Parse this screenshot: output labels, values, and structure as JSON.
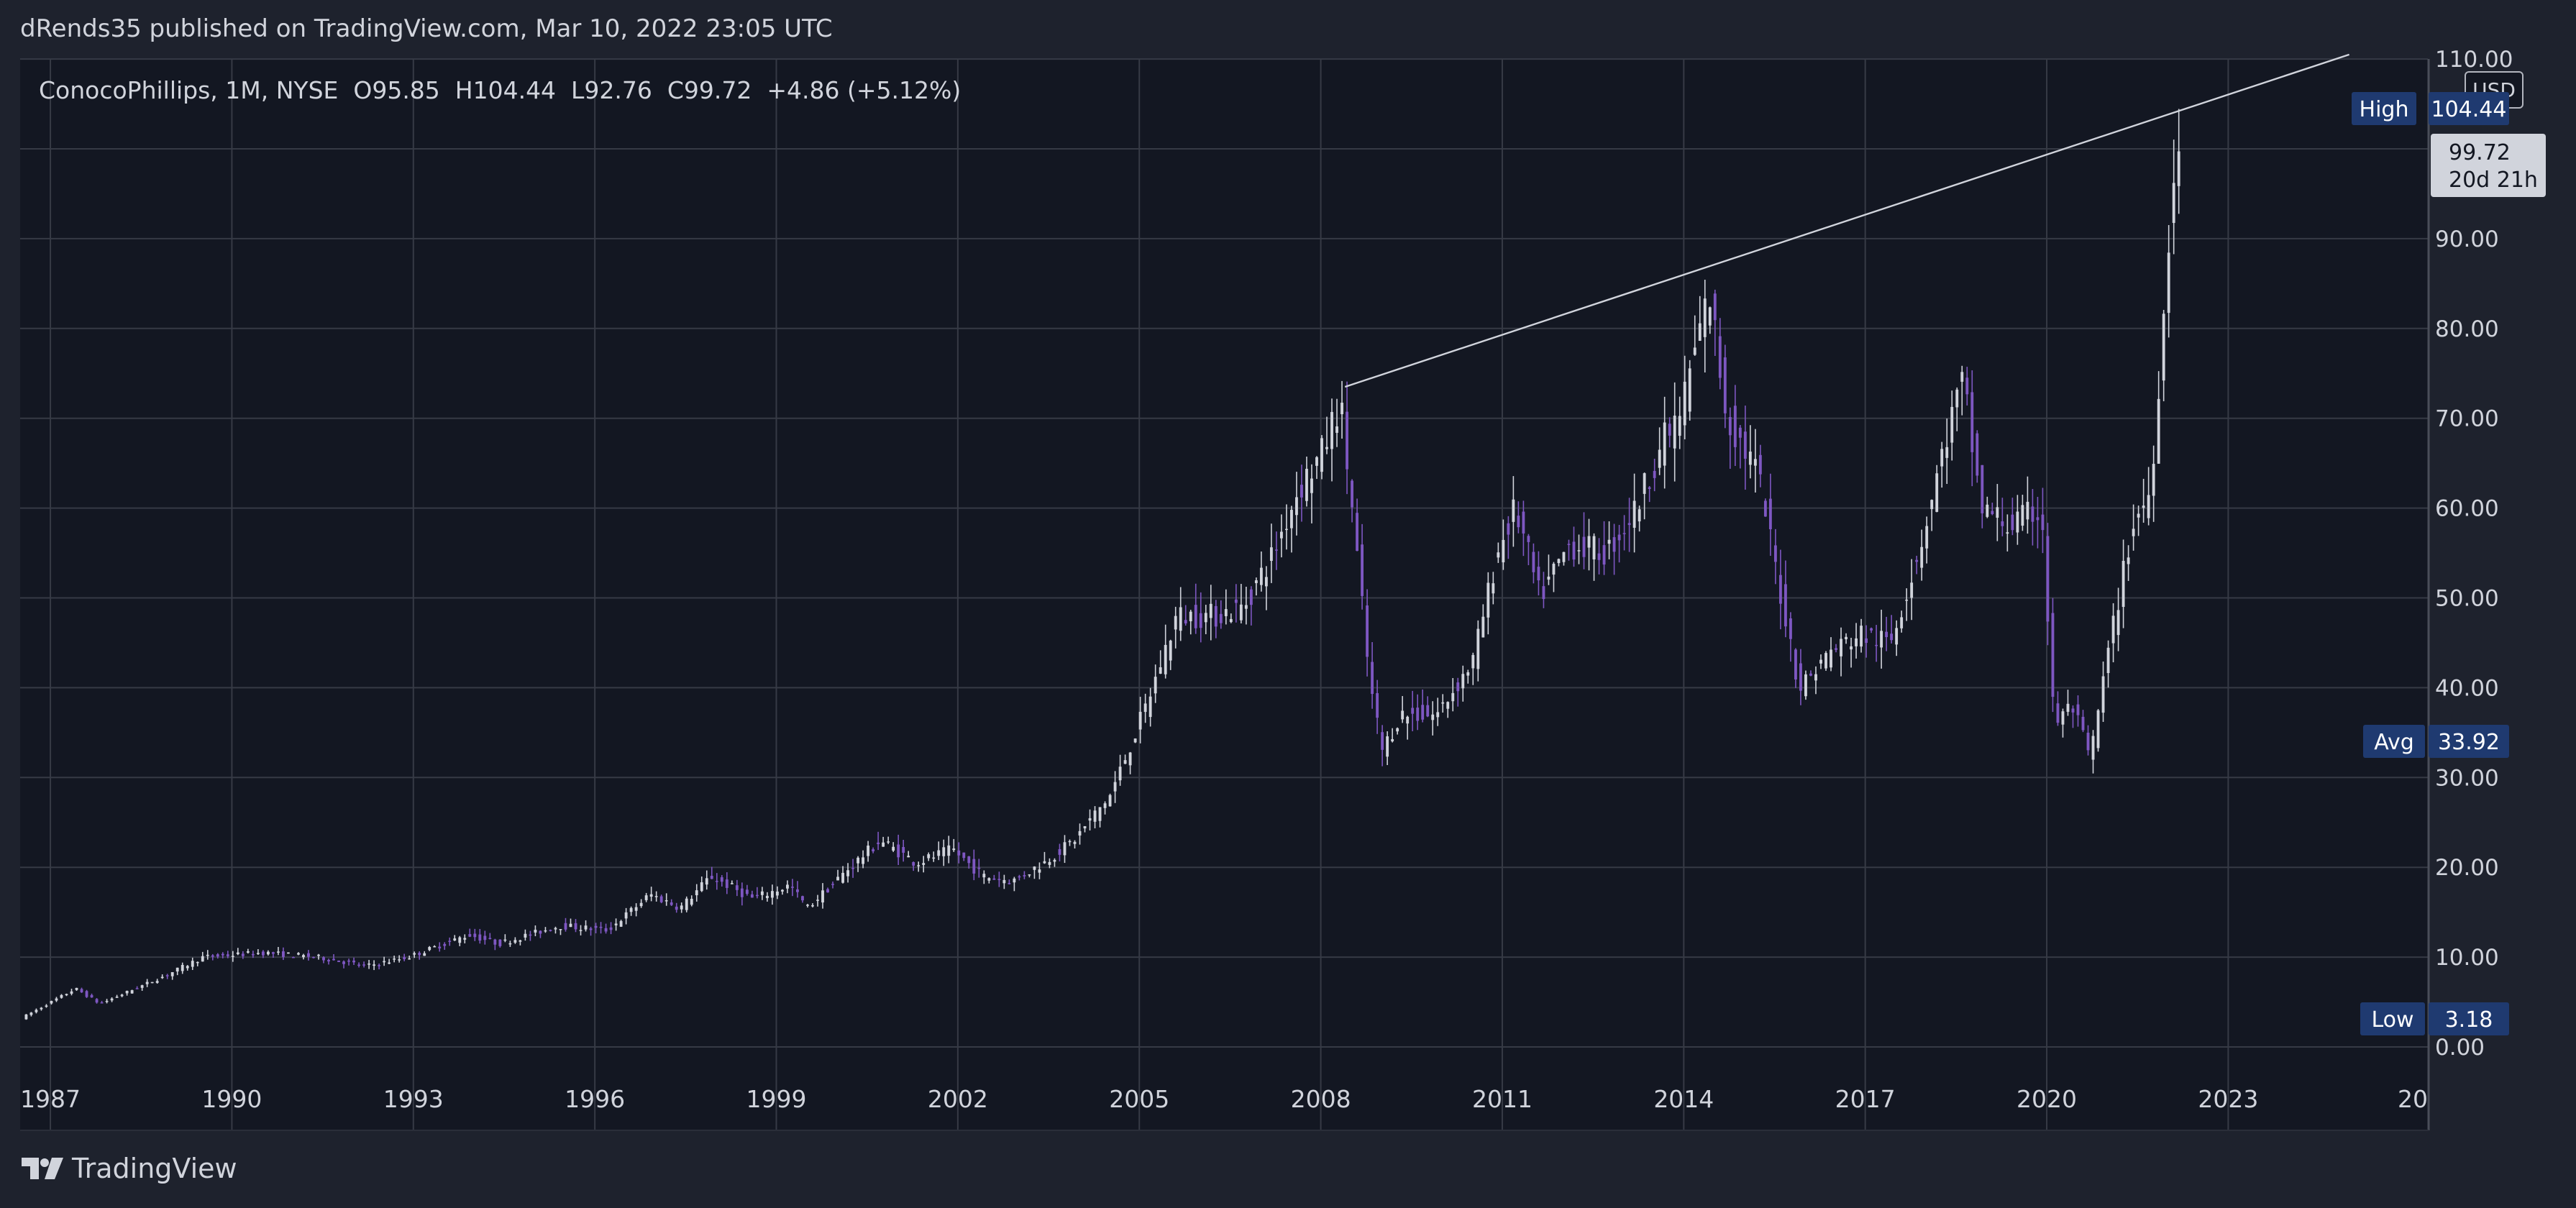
{
  "header": {
    "published": "dRends35 published on TradingView.com, Mar 10, 2022 23:05 UTC"
  },
  "legend": {
    "text": "ConocoPhillips, 1M, NYSE  O95.85  H104.44  L92.76  C99.72  +4.86 (+5.12%)"
  },
  "currency_label": "USD",
  "logo_text": "TradingView",
  "colors": {
    "background": "#131722",
    "outer_background": "#1e222d",
    "grid": "#363a45",
    "up_candle": "#d1d4dc",
    "down_candle": "#7e57c2",
    "badge": "#1f3a70",
    "trendline": "#d1d4dc"
  },
  "chart_data": {
    "type": "candlestick",
    "series_name": "ConocoPhillips",
    "interval": "1M",
    "exchange": "NYSE",
    "last_bar": {
      "open": 95.85,
      "high": 104.44,
      "low": 92.76,
      "close": 99.72,
      "change": 4.86,
      "change_pct": 5.12
    },
    "x_ticks": [
      "1987",
      "1990",
      "1993",
      "1996",
      "1999",
      "2002",
      "2005",
      "2008",
      "2011",
      "2014",
      "2017",
      "2020",
      "2023",
      "20"
    ],
    "x_range": [
      1986.5,
      2026.3
    ],
    "y_ticks": [
      "110.00",
      "90.00",
      "80.00",
      "70.00",
      "60.00",
      "50.00",
      "40.00",
      "30.00",
      "20.00",
      "10.00",
      "0.00"
    ],
    "y_range": [
      -1,
      110
    ],
    "price_anchors": [
      [
        1986.6,
        3.2
      ],
      [
        1987.5,
        6.5
      ],
      [
        1987.9,
        4.8
      ],
      [
        1989.0,
        8
      ],
      [
        1989.6,
        10
      ],
      [
        1990.6,
        10.5
      ],
      [
        1991.5,
        10
      ],
      [
        1992.3,
        9
      ],
      [
        1993.0,
        10
      ],
      [
        1994.0,
        12.5
      ],
      [
        1994.5,
        11.5
      ],
      [
        1995.5,
        13.5
      ],
      [
        1996.3,
        13
      ],
      [
        1997.0,
        17
      ],
      [
        1997.5,
        15.5
      ],
      [
        1998.0,
        19
      ],
      [
        1998.7,
        16.5
      ],
      [
        1999.3,
        18
      ],
      [
        1999.6,
        15.5
      ],
      [
        2000.3,
        20
      ],
      [
        2000.8,
        23
      ],
      [
        2001.4,
        20.5
      ],
      [
        2002.0,
        22
      ],
      [
        2002.5,
        19
      ],
      [
        2003.0,
        18.5
      ],
      [
        2003.5,
        20.5
      ],
      [
        2004.0,
        23
      ],
      [
        2004.6,
        28
      ],
      [
        2005.2,
        38
      ],
      [
        2005.7,
        48
      ],
      [
        2006.3,
        48
      ],
      [
        2006.8,
        49
      ],
      [
        2007.3,
        55
      ],
      [
        2007.7,
        62
      ],
      [
        2008.1,
        66
      ],
      [
        2008.4,
        72
      ],
      [
        2008.6,
        60
      ],
      [
        2008.9,
        40
      ],
      [
        2009.1,
        33
      ],
      [
        2009.4,
        37
      ],
      [
        2010.0,
        37
      ],
      [
        2010.6,
        43
      ],
      [
        2011.0,
        55
      ],
      [
        2011.3,
        60
      ],
      [
        2011.7,
        50
      ],
      [
        2012.2,
        56
      ],
      [
        2012.8,
        55
      ],
      [
        2013.3,
        60
      ],
      [
        2013.7,
        67
      ],
      [
        2014.0,
        70
      ],
      [
        2014.5,
        84
      ],
      [
        2014.8,
        70
      ],
      [
        2015.3,
        64
      ],
      [
        2015.7,
        50
      ],
      [
        2016.0,
        40
      ],
      [
        2016.5,
        44
      ],
      [
        2017.0,
        46
      ],
      [
        2017.5,
        45
      ],
      [
        2018.0,
        56
      ],
      [
        2018.5,
        70
      ],
      [
        2018.7,
        74
      ],
      [
        2019.0,
        60
      ],
      [
        2019.5,
        58
      ],
      [
        2020.0,
        60
      ],
      [
        2020.2,
        36
      ],
      [
        2020.5,
        38
      ],
      [
        2020.8,
        32
      ],
      [
        2021.1,
        44
      ],
      [
        2021.5,
        58
      ],
      [
        2021.8,
        62
      ],
      [
        2022.0,
        80
      ],
      [
        2022.2,
        99.72
      ]
    ],
    "trendline": {
      "from": [
        2008.4,
        73.5
      ],
      "to": [
        2025.0,
        110.5
      ]
    },
    "annotations": [
      {
        "label": "High",
        "value": "104.44"
      },
      {
        "label": "Avg",
        "value": "33.92"
      },
      {
        "label": "Low",
        "value": "3.18"
      }
    ],
    "last_price": {
      "value": "99.72",
      "countdown": "20d 21h"
    }
  }
}
